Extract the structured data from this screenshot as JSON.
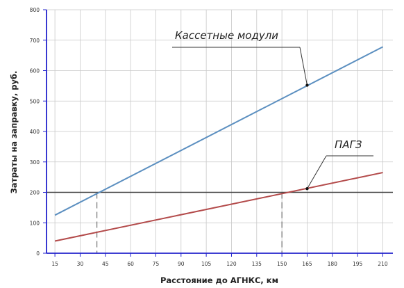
{
  "chart_data": {
    "type": "line",
    "xlabel": "Расстояние до АГНКС, км",
    "ylabel": "Затраты на заправку, руб.",
    "xlim": [
      10,
      216
    ],
    "ylim": [
      0,
      800
    ],
    "x_ticks": [
      15,
      30,
      45,
      60,
      75,
      90,
      105,
      120,
      135,
      150,
      165,
      180,
      195,
      210
    ],
    "y_ticks": [
      0,
      100,
      200,
      300,
      400,
      500,
      600,
      700,
      800
    ],
    "grid": true,
    "series": [
      {
        "name": "Кассетные модули",
        "color": "#5b8fc0",
        "x": [
          15,
          210
        ],
        "y": [
          125,
          678
        ]
      },
      {
        "name": "ПАГЗ",
        "color": "#b34a4a",
        "x": [
          15,
          210
        ],
        "y": [
          40,
          265
        ]
      }
    ],
    "reference_line": {
      "y": 200,
      "color": "#444444"
    },
    "dashed_markers": [
      {
        "x": 40,
        "y": 200
      },
      {
        "x": 150,
        "y": 200
      }
    ],
    "annotations": [
      {
        "text": "Кассетные модули",
        "series": 0,
        "x": 165,
        "y": 552
      },
      {
        "text": "ПАГЗ",
        "series": 1,
        "x": 165,
        "y": 212
      }
    ]
  }
}
